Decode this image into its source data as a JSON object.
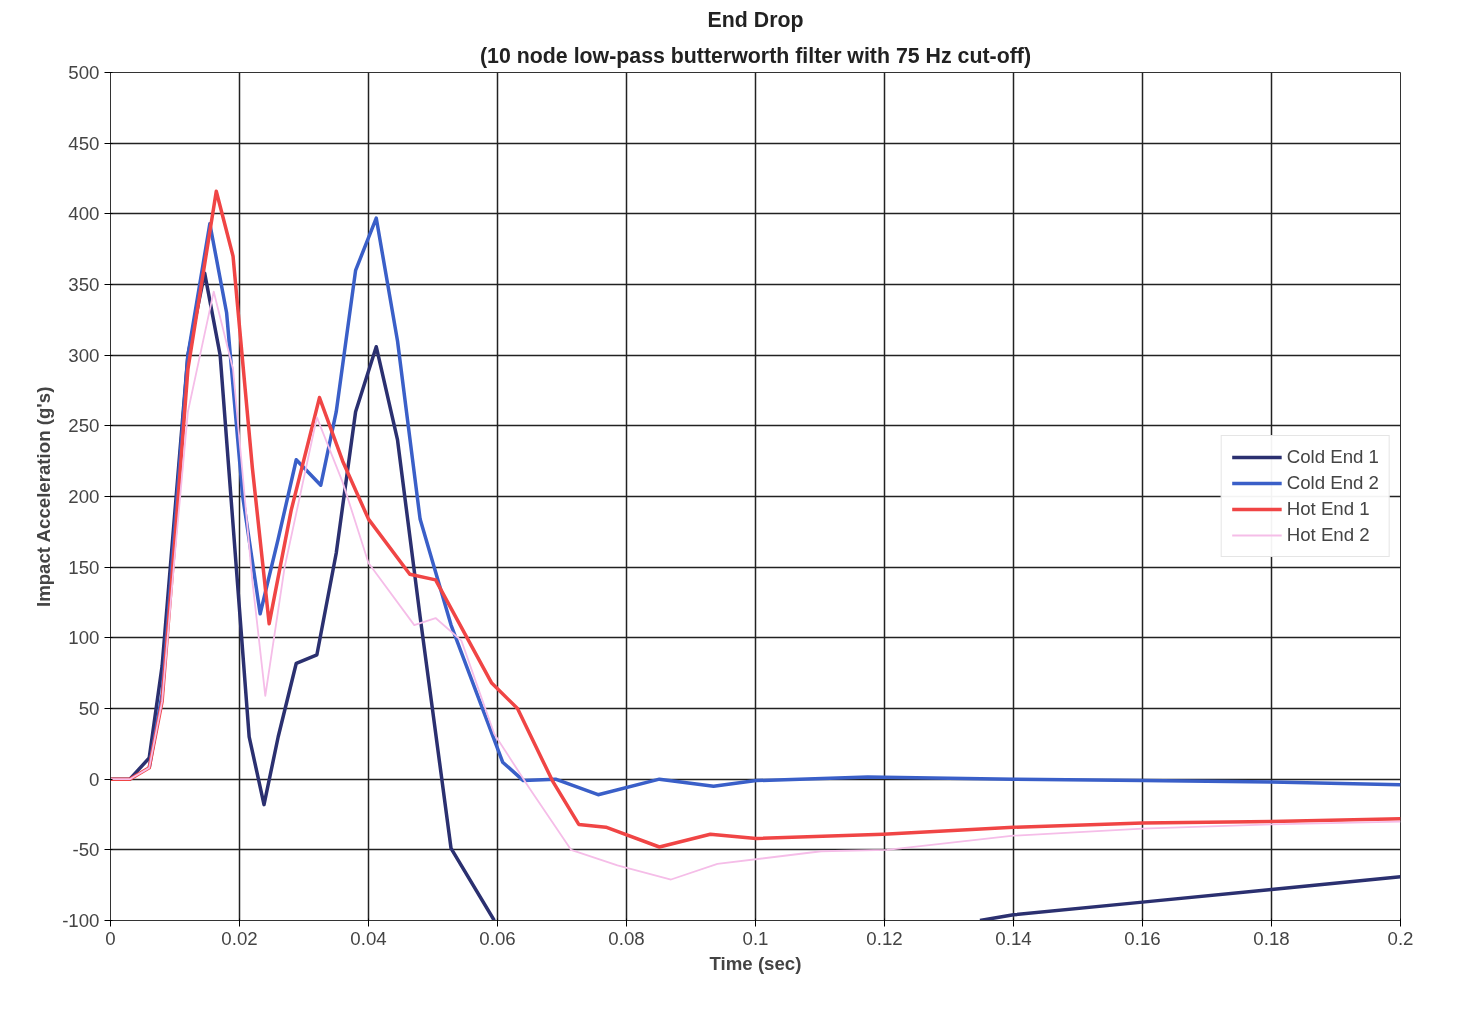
{
  "chart_data": {
    "type": "line",
    "title": "End Drop",
    "subtitle": "(10 node low-pass butterworth filter with 75 Hz cut-off)",
    "xlabel": "Time (sec)",
    "ylabel": "Impact Acceleration (g's)",
    "xlim": [
      0,
      0.2
    ],
    "ylim": [
      -100,
      500
    ],
    "xticks": [
      0,
      0.02,
      0.04,
      0.06,
      0.08,
      0.1,
      0.12,
      0.14,
      0.16,
      0.18,
      0.2
    ],
    "yticks": [
      -100,
      -50,
      0,
      50,
      100,
      150,
      200,
      250,
      300,
      350,
      400,
      450,
      500
    ],
    "grid": true,
    "legend": "right",
    "marker": "none",
    "line_style": "solid",
    "series": [
      {
        "name": "Cold End 1",
        "color": "#2b3070",
        "x": [
          0,
          0.003,
          0.006,
          0.008,
          0.01,
          0.012,
          0.0146,
          0.017,
          0.0195,
          0.0215,
          0.0238,
          0.026,
          0.0288,
          0.032,
          0.035,
          0.038,
          0.0412,
          0.0445,
          0.048,
          0.0528,
          0.0595,
          0.097,
          0.1348,
          0.14,
          0.16,
          0.18,
          0.2
        ],
        "values": [
          0,
          0,
          15,
          80,
          190,
          300,
          358,
          300,
          150,
          30,
          -18,
          30,
          82,
          88,
          160,
          260,
          306,
          240,
          115,
          -49,
          -100,
          null,
          -100,
          -96,
          -87,
          -78,
          -69
        ]
      },
      {
        "name": "Cold End 2",
        "color": "#3a5fc8",
        "x": [
          0.006,
          0.008,
          0.01,
          0.012,
          0.0154,
          0.018,
          0.0205,
          0.0232,
          0.026,
          0.0288,
          0.0326,
          0.035,
          0.038,
          0.0412,
          0.0445,
          0.048,
          0.0528,
          0.0608,
          0.064,
          0.069,
          0.0756,
          0.0851,
          0.0935,
          0.1001,
          0.1174,
          0.14,
          0.16,
          0.18,
          0.2
        ],
        "values": [
          8,
          60,
          180,
          300,
          393,
          330,
          200,
          117,
          170,
          226,
          208,
          260,
          360,
          397,
          310,
          184,
          109,
          12,
          -1,
          0,
          -11,
          0,
          -5,
          -1,
          1.5,
          0,
          -1,
          -2,
          -4
        ]
      },
      {
        "name": "Hot End 1",
        "color": "#f04545",
        "x": [
          0,
          0.003,
          0.006,
          0.008,
          0.01,
          0.012,
          0.0164,
          0.019,
          0.022,
          0.0246,
          0.028,
          0.0324,
          0.036,
          0.04,
          0.0464,
          0.0504,
          0.0591,
          0.0631,
          0.0685,
          0.0726,
          0.0768,
          0.0851,
          0.093,
          0.1001,
          0.1198,
          0.14,
          0.16,
          0.18,
          0.2
        ],
        "values": [
          0,
          0,
          8,
          55,
          170,
          290,
          416,
          370,
          220,
          110,
          190,
          270,
          225,
          184,
          145,
          141,
          68,
          50,
          -1,
          -32,
          -34,
          -48,
          -39,
          -42,
          -39,
          -34,
          -31,
          -30,
          -28
        ]
      },
      {
        "name": "Hot End 2",
        "color": "#f5bde8",
        "x": [
          0,
          0.003,
          0.006,
          0.008,
          0.01,
          0.012,
          0.016,
          0.019,
          0.022,
          0.024,
          0.027,
          0.032,
          0.036,
          0.04,
          0.0471,
          0.0504,
          0.0544,
          0.0595,
          0.0649,
          0.0714,
          0.0786,
          0.0869,
          0.0941,
          0.1102,
          0.1204,
          0.14,
          0.16,
          0.18,
          0.2
        ],
        "values": [
          0,
          0,
          8,
          55,
          160,
          260,
          345,
          290,
          140,
          59,
          150,
          256,
          210,
          153,
          109,
          114,
          98,
          32,
          -6,
          -50,
          -61,
          -71,
          -60,
          -51,
          -50,
          -40,
          -35,
          -32,
          -30
        ]
      }
    ]
  }
}
